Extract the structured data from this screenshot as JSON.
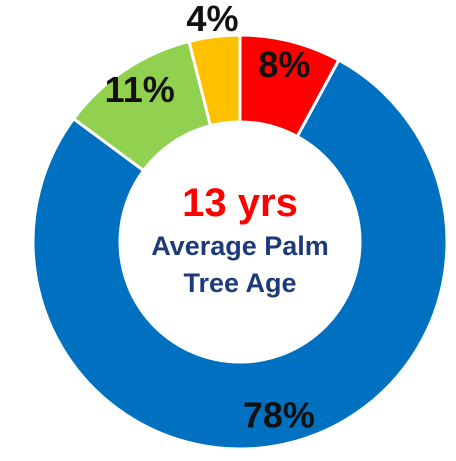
{
  "chart_data": {
    "type": "donut",
    "center_value": "13 yrs",
    "center_label": "Average Palm Tree Age",
    "values": [
      8,
      78,
      11,
      4
    ],
    "value_labels": [
      "8%",
      "78%",
      "11%",
      "4%"
    ],
    "colors": [
      "#ff0000",
      "#0070c0",
      "#92d050",
      "#ffc000"
    ]
  }
}
